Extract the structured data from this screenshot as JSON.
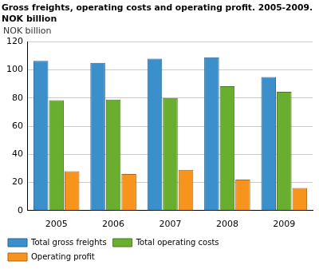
{
  "chart_data": {
    "type": "bar",
    "title": [
      "Gross freights, operating costs and operating profit. 2005-2009.",
      "NOK billion"
    ],
    "y_label": "NOK billion",
    "categories": [
      "2005",
      "2006",
      "2007",
      "2008",
      "2009"
    ],
    "series": [
      {
        "name": "Total gross freights",
        "color": "#3b8fcb",
        "values": [
          106.5,
          105,
          108,
          109,
          95
        ]
      },
      {
        "name": "Total operating costs",
        "color": "#6aae2f",
        "values": [
          78.5,
          79,
          80,
          88.5,
          84.5
        ]
      },
      {
        "name": "Operating profit",
        "color": "#f7941d",
        "values": [
          28,
          26,
          29,
          22,
          16
        ]
      }
    ],
    "ylim": [
      0,
      120
    ],
    "yticks": [
      0,
      20,
      40,
      60,
      80,
      100,
      120
    ],
    "grid": true,
    "legend": "bottom"
  }
}
